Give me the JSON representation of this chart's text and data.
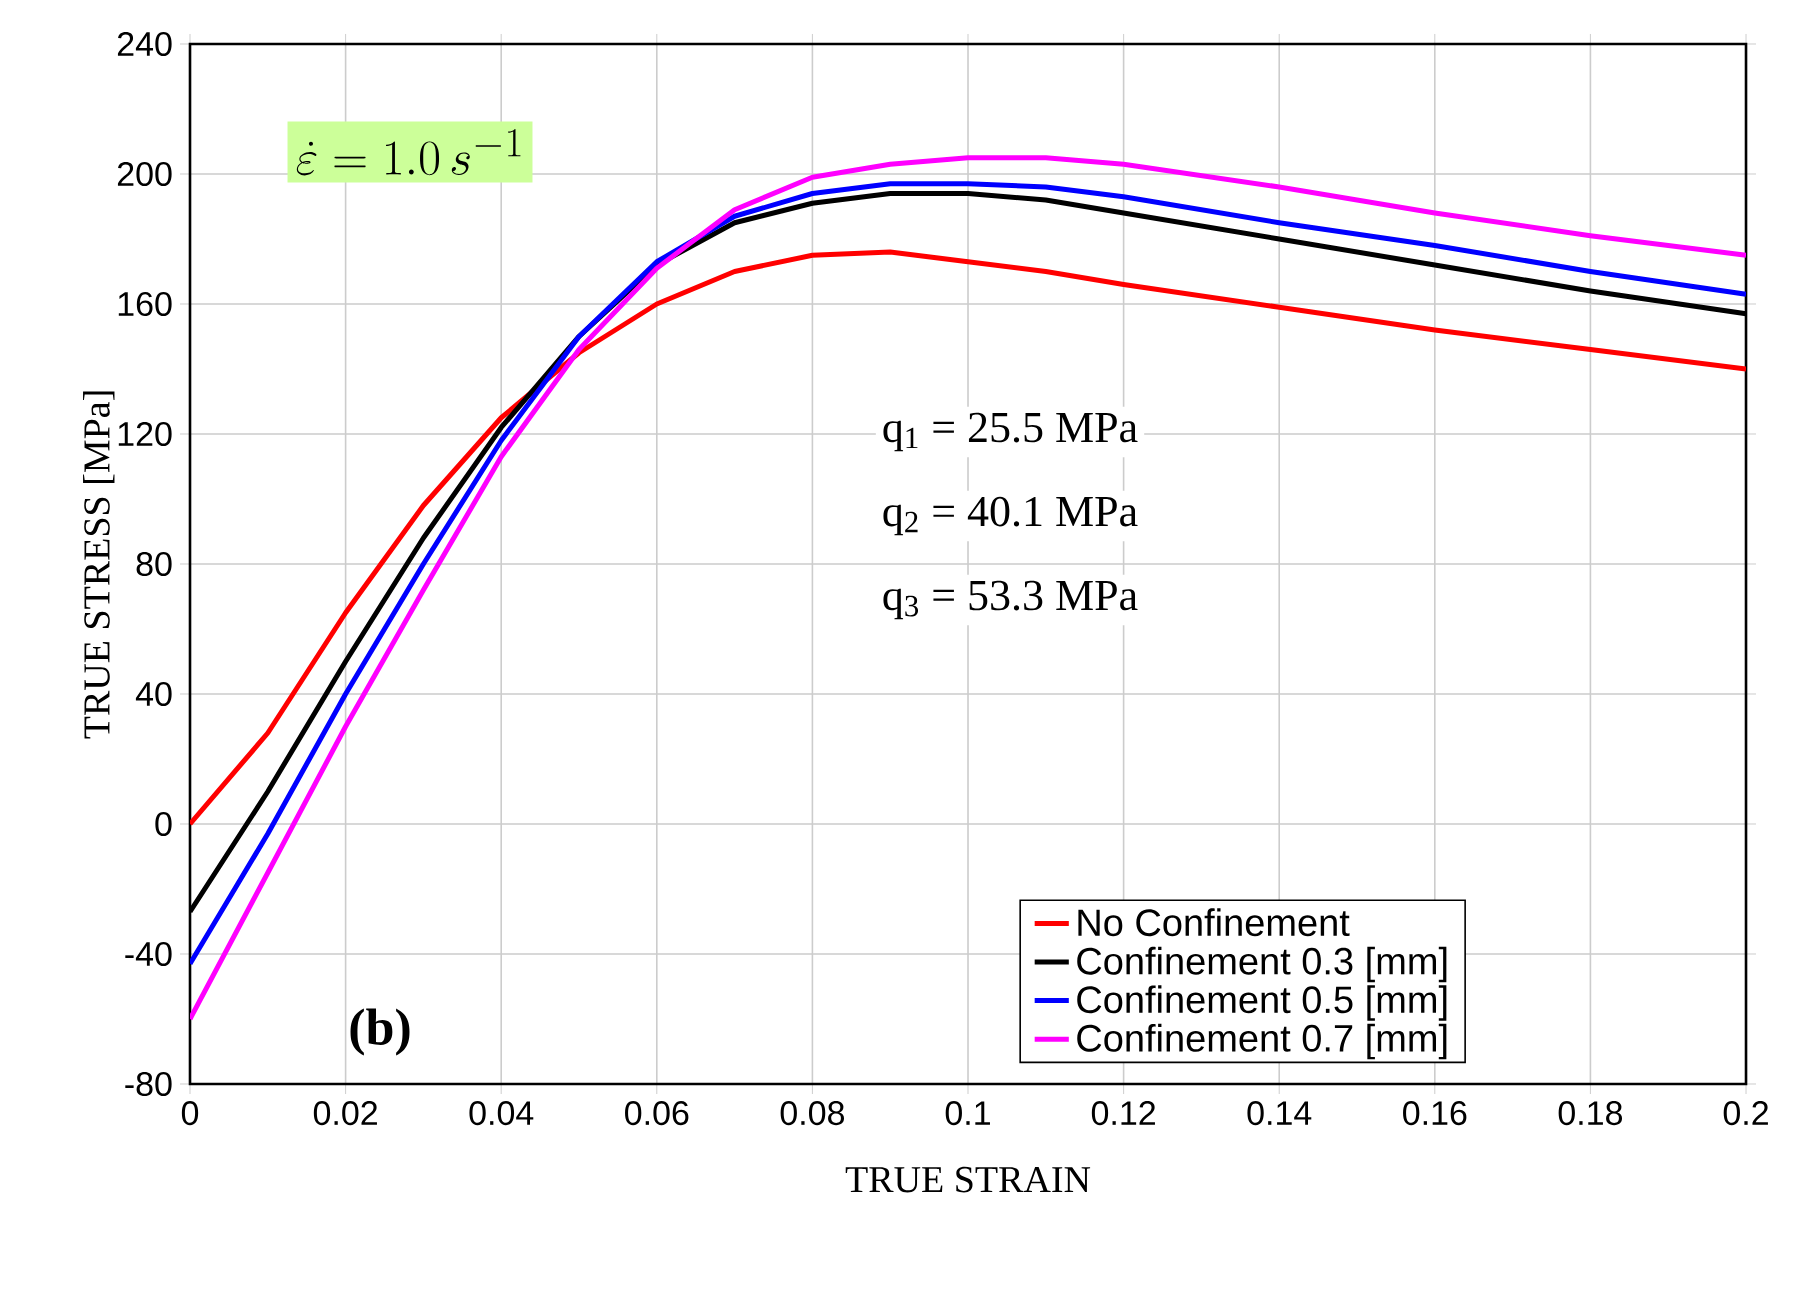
{
  "chart_data": {
    "type": "line",
    "xlabel": "TRUE STRAIN",
    "ylabel": "TRUE STRESS [MPa]",
    "xlim": [
      0,
      0.2
    ],
    "ylim": [
      -80,
      240
    ],
    "xticks": [
      0,
      0.02,
      0.04,
      0.06,
      0.08,
      0.1,
      0.12,
      0.14,
      0.16,
      0.18,
      0.2
    ],
    "yticks": [
      -80,
      -40,
      0,
      40,
      80,
      120,
      160,
      200,
      240
    ],
    "grid": true,
    "legend": "bottom right",
    "marker": "none",
    "line_style": "solid",
    "x": [
      0,
      0.01,
      0.02,
      0.03,
      0.04,
      0.05,
      0.06,
      0.07,
      0.08,
      0.09,
      0.1,
      0.11,
      0.12,
      0.14,
      0.16,
      0.18,
      0.2
    ],
    "series": [
      {
        "name": "No Confinement",
        "color": "#ff0000",
        "values": [
          0,
          28,
          65,
          98,
          125,
          145,
          160,
          170,
          175,
          176,
          173,
          170,
          166,
          159,
          152,
          146,
          140
        ]
      },
      {
        "name": "Confinement 0.3 [mm]",
        "color": "#000000",
        "values": [
          -27,
          10,
          50,
          88,
          122,
          150,
          172,
          185,
          191,
          194,
          194,
          192,
          188,
          180,
          172,
          164,
          157
        ]
      },
      {
        "name": "Confinement 0.5 [mm]",
        "color": "#0000ff",
        "values": [
          -43,
          -3,
          40,
          80,
          118,
          150,
          173,
          187,
          194,
          197,
          197,
          196,
          193,
          185,
          178,
          170,
          163
        ]
      },
      {
        "name": "Confinement 0.7 [mm]",
        "color": "#ff00ff",
        "values": [
          -60,
          -15,
          30,
          72,
          113,
          146,
          171,
          189,
          199,
          203,
          205,
          205,
          203,
          196,
          188,
          181,
          175
        ]
      }
    ],
    "annotations": [
      "\\dot{\\varepsilon} = 1.0\\,s^{-1}",
      "q$_{1}$ = 25.5 MPa",
      "q$_{2}$ = 40.1 MPa",
      "q$_{3}$ = 53.3 MPa",
      "(b)"
    ]
  }
}
